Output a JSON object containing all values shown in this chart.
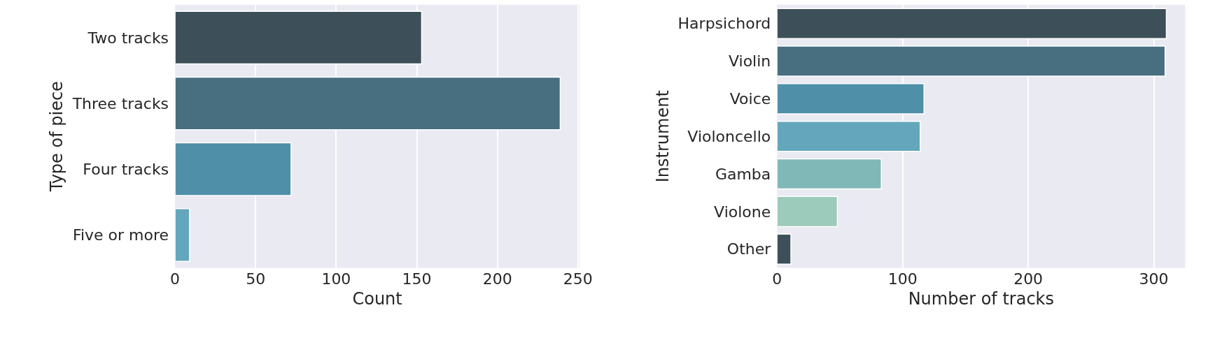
{
  "chart_data": [
    {
      "type": "bar",
      "orientation": "horizontal",
      "xlabel": "Count",
      "ylabel": "Type of piece",
      "categories": [
        "Two tracks",
        "Three tracks",
        "Four tracks",
        "Five or more"
      ],
      "values": [
        153,
        239,
        72,
        9
      ],
      "colors": [
        "#3d5059",
        "#476f80",
        "#4f8fa8",
        "#64a7bd"
      ],
      "xlim": [
        0,
        251
      ],
      "xticks": [
        0,
        50,
        100,
        150,
        200,
        250
      ],
      "grid": "x"
    },
    {
      "type": "bar",
      "orientation": "horizontal",
      "xlabel": "Number of tracks",
      "ylabel": "Instrument",
      "categories": [
        "Harpsichord",
        "Violin",
        "Voice",
        "Violoncello",
        "Gamba",
        "Violone",
        "Other"
      ],
      "values": [
        310,
        309,
        117,
        114,
        83,
        48,
        11
      ],
      "colors": [
        "#3d5059",
        "#476f80",
        "#4f8fa8",
        "#64a7bd",
        "#80b8b8",
        "#9ccbbb",
        "#3d5059"
      ],
      "xlim": [
        0,
        325
      ],
      "xticks": [
        0,
        100,
        200,
        300
      ],
      "grid": "x"
    }
  ]
}
